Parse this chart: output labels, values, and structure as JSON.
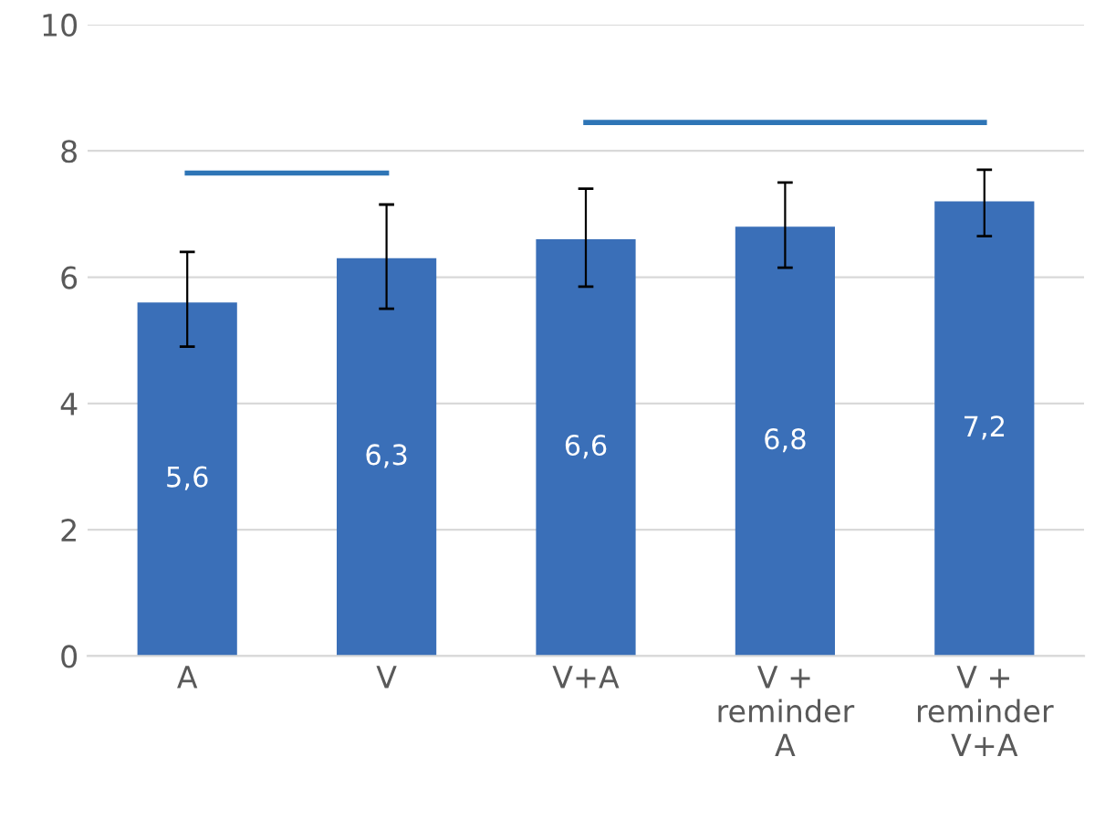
{
  "chart_data": {
    "type": "bar",
    "categories": [
      "A",
      "V",
      "V+A",
      "V +\nreminder\nA",
      "V +\nreminder\nV+A"
    ],
    "series": [
      {
        "color": "#3a6fb8",
        "values": [
          5.6,
          6.3,
          6.6,
          6.8,
          7.2
        ],
        "value_labels": [
          "5,6",
          "6,3",
          "6,6",
          "6,8",
          "7,2"
        ],
        "errors": [
          [
            4.9,
            6.4
          ],
          [
            5.5,
            7.15
          ],
          [
            5.85,
            7.4
          ],
          [
            6.15,
            7.5
          ],
          [
            6.65,
            7.7
          ]
        ]
      },
      {
        "type": "line",
        "color": "#2e75b6",
        "x": [
          "A",
          "V"
        ],
        "values": [
          7.65,
          7.65
        ]
      },
      {
        "type": "line",
        "color": "#2e75b6",
        "x": [
          "V+A",
          "V +\nreminder\nV+A"
        ],
        "values": [
          8.45,
          8.45
        ]
      }
    ],
    "ylim": [
      0,
      10
    ],
    "yticks": [
      0,
      2,
      4,
      6,
      8,
      10
    ],
    "grid": "y"
  }
}
